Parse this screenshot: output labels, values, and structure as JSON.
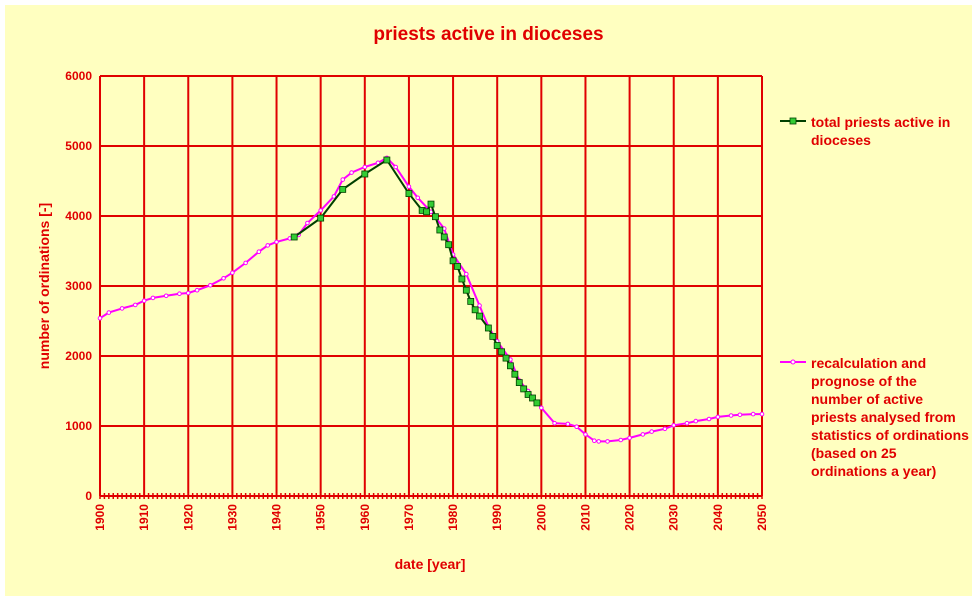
{
  "chart_data": {
    "type": "line",
    "title": "priests active in dioceses",
    "xlabel": "date [year]",
    "ylabel": "number of ordinations [-]",
    "xlim": [
      1900,
      2050
    ],
    "ylim": [
      0,
      6000
    ],
    "x_ticks": [
      "1900",
      "1910",
      "1920",
      "1930",
      "1940",
      "1950",
      "1960",
      "1970",
      "1980",
      "1990",
      "2000",
      "2010",
      "2020",
      "2030",
      "2040",
      "2050"
    ],
    "y_ticks": [
      "0",
      "1000",
      "2000",
      "3000",
      "4000",
      "5000",
      "6000"
    ],
    "grid": true,
    "legend_position": "right",
    "series": [
      {
        "name": "total priests active in dioceses",
        "color": "#004000",
        "marker_color": "#33cc33",
        "marker": "square",
        "points": [
          [
            1944,
            3700
          ],
          [
            1950,
            3970
          ],
          [
            1955,
            4380
          ],
          [
            1960,
            4600
          ],
          [
            1965,
            4800
          ],
          [
            1970,
            4320
          ],
          [
            1973,
            4080
          ],
          [
            1974,
            4060
          ],
          [
            1975,
            4170
          ],
          [
            1976,
            3990
          ],
          [
            1977,
            3800
          ],
          [
            1978,
            3700
          ],
          [
            1979,
            3590
          ],
          [
            1980,
            3360
          ],
          [
            1981,
            3280
          ],
          [
            1982,
            3100
          ],
          [
            1983,
            2940
          ],
          [
            1984,
            2780
          ],
          [
            1985,
            2660
          ],
          [
            1986,
            2570
          ],
          [
            1988,
            2400
          ],
          [
            1989,
            2280
          ],
          [
            1990,
            2150
          ],
          [
            1991,
            2060
          ],
          [
            1992,
            1970
          ],
          [
            1993,
            1860
          ],
          [
            1994,
            1740
          ],
          [
            1995,
            1620
          ],
          [
            1996,
            1530
          ],
          [
            1997,
            1450
          ],
          [
            1998,
            1400
          ],
          [
            1999,
            1330
          ]
        ]
      },
      {
        "name": "recalculation and prognose of the number of active priests analysed from statistics of ordinations (based on 25 ordinations a year)",
        "color": "#ff00ff",
        "marker": "dot",
        "points": [
          [
            1900,
            2540
          ],
          [
            1902,
            2620
          ],
          [
            1905,
            2680
          ],
          [
            1908,
            2730
          ],
          [
            1910,
            2790
          ],
          [
            1912,
            2830
          ],
          [
            1915,
            2860
          ],
          [
            1918,
            2890
          ],
          [
            1920,
            2900
          ],
          [
            1922,
            2940
          ],
          [
            1925,
            3010
          ],
          [
            1928,
            3110
          ],
          [
            1930,
            3190
          ],
          [
            1933,
            3330
          ],
          [
            1936,
            3490
          ],
          [
            1938,
            3580
          ],
          [
            1940,
            3630
          ],
          [
            1943,
            3680
          ],
          [
            1945,
            3730
          ],
          [
            1947,
            3900
          ],
          [
            1950,
            4080
          ],
          [
            1953,
            4280
          ],
          [
            1955,
            4520
          ],
          [
            1957,
            4620
          ],
          [
            1960,
            4700
          ],
          [
            1963,
            4760
          ],
          [
            1965,
            4830
          ],
          [
            1967,
            4700
          ],
          [
            1970,
            4420
          ],
          [
            1972,
            4260
          ],
          [
            1975,
            4060
          ],
          [
            1978,
            3820
          ],
          [
            1980,
            3450
          ],
          [
            1983,
            3170
          ],
          [
            1986,
            2720
          ],
          [
            1988,
            2420
          ],
          [
            1990,
            2210
          ],
          [
            1993,
            1950
          ],
          [
            1995,
            1650
          ],
          [
            1997,
            1500
          ],
          [
            2000,
            1260
          ],
          [
            2003,
            1040
          ],
          [
            2006,
            1030
          ],
          [
            2008,
            990
          ],
          [
            2010,
            880
          ],
          [
            2012,
            790
          ],
          [
            2013,
            780
          ],
          [
            2015,
            780
          ],
          [
            2018,
            800
          ],
          [
            2020,
            830
          ],
          [
            2023,
            880
          ],
          [
            2025,
            920
          ],
          [
            2028,
            960
          ],
          [
            2030,
            1010
          ],
          [
            2033,
            1040
          ],
          [
            2035,
            1070
          ],
          [
            2038,
            1100
          ],
          [
            2040,
            1130
          ],
          [
            2043,
            1150
          ],
          [
            2045,
            1160
          ],
          [
            2048,
            1170
          ],
          [
            2050,
            1170
          ]
        ]
      }
    ]
  }
}
